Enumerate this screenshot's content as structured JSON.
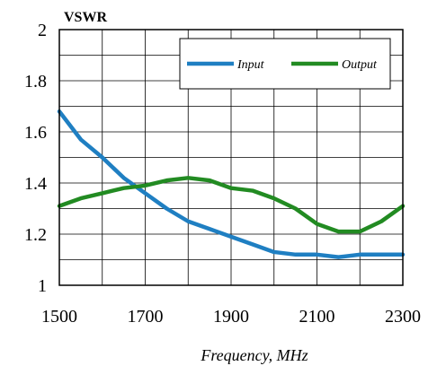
{
  "chart_data": {
    "type": "line",
    "ylabel": "VSWR",
    "xlabel": "Frequency, MHz",
    "xlim": [
      1500,
      2300
    ],
    "ylim": [
      1,
      2
    ],
    "x_ticks": [
      "1500",
      "1700",
      "1900",
      "2100",
      "2300"
    ],
    "y_ticks": [
      "1",
      "1.2",
      "1.4",
      "1.6",
      "1.8",
      "2"
    ],
    "grid": true,
    "legend_position": "top-right",
    "series": [
      {
        "name": "Input",
        "color": "#1f7fc2",
        "x": [
          1500,
          1550,
          1600,
          1650,
          1700,
          1750,
          1800,
          1850,
          1900,
          1950,
          2000,
          2050,
          2100,
          2150,
          2200,
          2250,
          2300
        ],
        "y": [
          1.68,
          1.57,
          1.5,
          1.42,
          1.36,
          1.3,
          1.25,
          1.22,
          1.19,
          1.16,
          1.13,
          1.12,
          1.12,
          1.11,
          1.12,
          1.12,
          1.12
        ]
      },
      {
        "name": "Output",
        "color": "#228b22",
        "x": [
          1500,
          1550,
          1600,
          1650,
          1700,
          1750,
          1800,
          1850,
          1900,
          1950,
          2000,
          2050,
          2100,
          2150,
          2200,
          2250,
          2300
        ],
        "y": [
          1.31,
          1.34,
          1.36,
          1.38,
          1.39,
          1.41,
          1.42,
          1.41,
          1.38,
          1.37,
          1.34,
          1.3,
          1.24,
          1.21,
          1.21,
          1.25,
          1.31
        ]
      }
    ]
  }
}
